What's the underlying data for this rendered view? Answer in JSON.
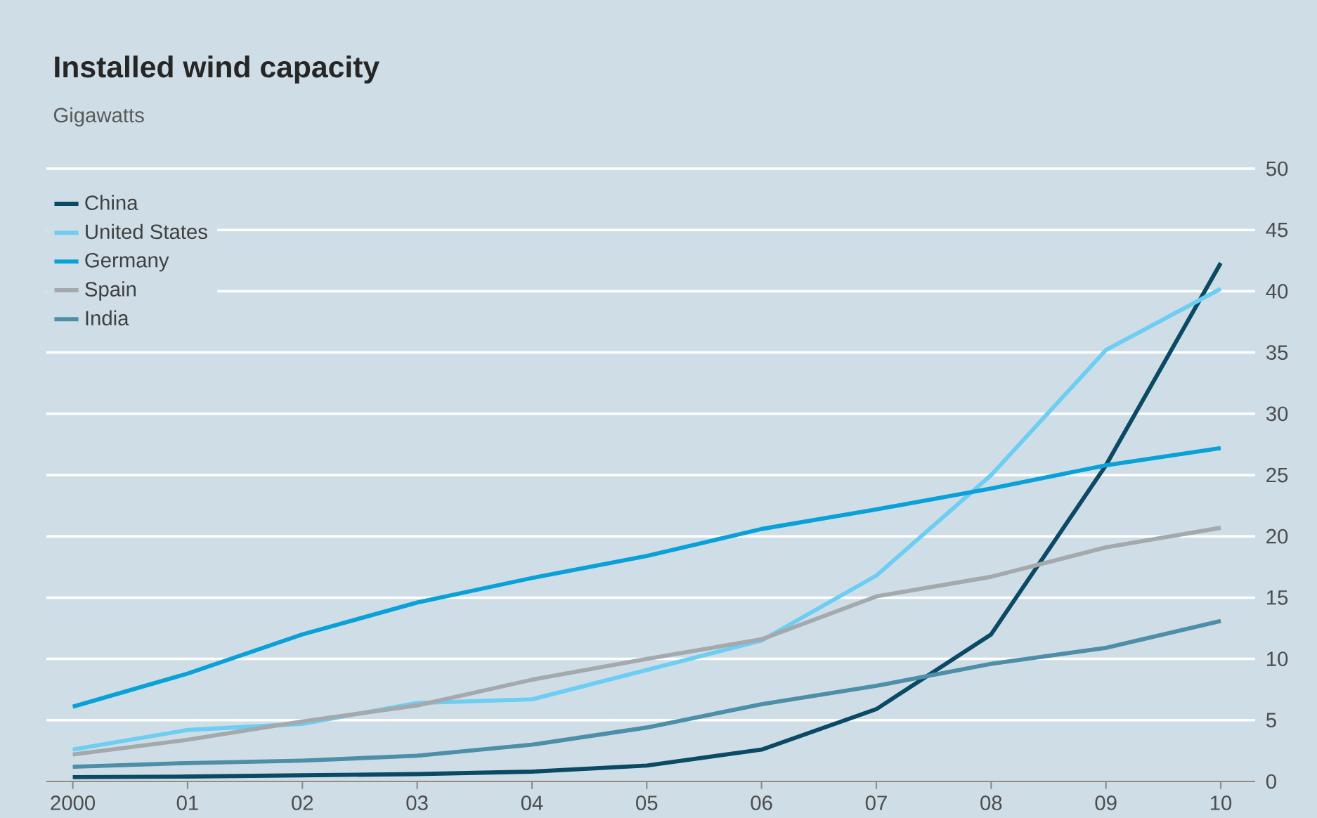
{
  "chart_data": {
    "type": "line",
    "title": "Installed wind capacity",
    "subtitle": "Gigawatts",
    "categories": [
      "2000",
      "01",
      "02",
      "03",
      "04",
      "05",
      "06",
      "07",
      "08",
      "09",
      "10"
    ],
    "series": [
      {
        "name": "China",
        "color": "#0b4a64",
        "values": [
          0.35,
          0.4,
          0.5,
          0.6,
          0.8,
          1.3,
          2.6,
          5.9,
          12.0,
          25.8,
          42.3
        ]
      },
      {
        "name": "United States",
        "color": "#6dcdf2",
        "values": [
          2.6,
          4.2,
          4.7,
          6.4,
          6.7,
          9.1,
          11.5,
          16.8,
          25.0,
          35.2,
          40.2
        ]
      },
      {
        "name": "Germany",
        "color": "#0aa0d8",
        "values": [
          6.1,
          8.8,
          12.0,
          14.6,
          16.6,
          18.4,
          20.6,
          22.2,
          23.9,
          25.8,
          27.2
        ]
      },
      {
        "name": "Spain",
        "color": "#a4a9ad",
        "values": [
          2.2,
          3.4,
          4.9,
          6.2,
          8.3,
          10.0,
          11.6,
          15.1,
          16.7,
          19.1,
          20.7
        ]
      },
      {
        "name": "India",
        "color": "#4d8ea8",
        "values": [
          1.2,
          1.5,
          1.7,
          2.1,
          3.0,
          4.4,
          6.3,
          7.8,
          9.6,
          10.9,
          13.1
        ]
      }
    ],
    "ylim": [
      0,
      50
    ],
    "yticks": [
      0,
      5,
      10,
      15,
      20,
      25,
      30,
      35,
      40,
      45,
      50
    ],
    "grid": "y",
    "legend": "top left",
    "marker": "none",
    "line_style": "solid"
  }
}
